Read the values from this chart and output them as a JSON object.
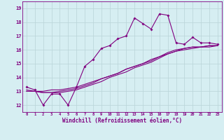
{
  "xlabel": "Windchill (Refroidissement éolien,°C)",
  "bg_color": "#d6eef2",
  "line_color": "#800080",
  "grid_color": "#b8d4d8",
  "x_values": [
    0,
    1,
    2,
    3,
    4,
    5,
    6,
    7,
    8,
    9,
    10,
    11,
    12,
    13,
    14,
    15,
    16,
    17,
    18,
    19,
    20,
    21,
    22,
    23
  ],
  "series1": [
    13.3,
    13.1,
    12.0,
    12.8,
    12.8,
    12.0,
    13.3,
    14.8,
    15.3,
    16.1,
    16.3,
    16.8,
    17.0,
    18.3,
    17.9,
    17.5,
    18.6,
    18.5,
    16.5,
    16.4,
    16.9,
    16.5,
    16.5,
    16.4
  ],
  "series2": [
    13.0,
    13.0,
    13.0,
    13.1,
    13.1,
    13.2,
    13.3,
    13.5,
    13.7,
    13.9,
    14.1,
    14.3,
    14.6,
    14.8,
    15.0,
    15.2,
    15.5,
    15.7,
    15.9,
    16.1,
    16.2,
    16.2,
    16.3,
    16.3
  ],
  "series3": [
    13.0,
    13.0,
    12.9,
    12.9,
    13.0,
    13.1,
    13.2,
    13.4,
    13.6,
    13.9,
    14.1,
    14.3,
    14.6,
    14.8,
    15.0,
    15.3,
    15.5,
    15.8,
    16.0,
    16.1,
    16.2,
    16.2,
    16.3,
    16.3
  ],
  "series4": [
    13.1,
    13.0,
    12.9,
    12.9,
    12.9,
    13.0,
    13.1,
    13.3,
    13.5,
    13.7,
    14.0,
    14.2,
    14.4,
    14.7,
    14.9,
    15.1,
    15.4,
    15.7,
    15.9,
    16.0,
    16.1,
    16.2,
    16.2,
    16.3
  ],
  "ylim": [
    11.5,
    19.5
  ],
  "yticks": [
    12,
    13,
    14,
    15,
    16,
    17,
    18,
    19
  ],
  "xtick_labels": [
    "0",
    "1",
    "2",
    "3",
    "4",
    "5",
    "6",
    "7",
    "8",
    "9",
    "10",
    "11",
    "12",
    "13",
    "14",
    "15",
    "16",
    "17",
    "18",
    "19",
    "20",
    "21",
    "22",
    "23"
  ]
}
